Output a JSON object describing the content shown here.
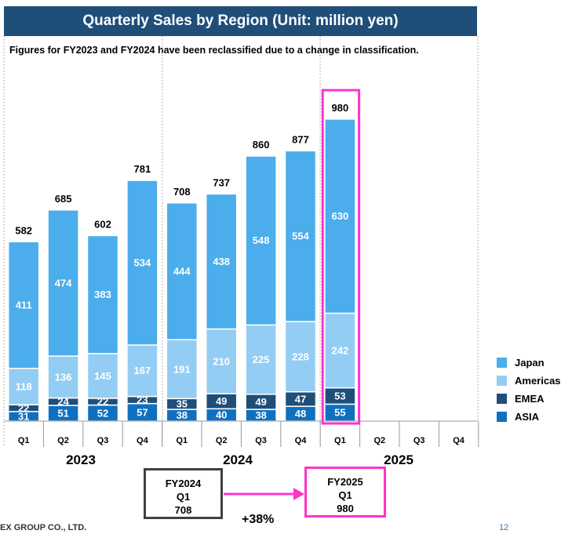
{
  "header": {
    "title": "Quarterly Sales by Region (Unit: million yen)"
  },
  "note": "Figures for FY2023 and FY2024 have been reclassified due to a change in classification.",
  "colors": {
    "Japan": "#4badec",
    "Americas": "#93cdf3",
    "EMEA": "#1f4e79",
    "ASIA": "#1070c0",
    "highlight": "#ff33cc"
  },
  "chart_data": {
    "type": "bar",
    "stacked": true,
    "categories": [
      "Q1",
      "Q2",
      "Q3",
      "Q4",
      "Q1",
      "Q2",
      "Q3",
      "Q4",
      "Q1",
      "Q2",
      "Q3",
      "Q4"
    ],
    "years": [
      "2023",
      "2024",
      "2025"
    ],
    "series": [
      {
        "name": "ASIA",
        "values": [
          31,
          51,
          52,
          57,
          38,
          40,
          38,
          48,
          55,
          null,
          null,
          null
        ]
      },
      {
        "name": "EMEA",
        "values": [
          22,
          24,
          22,
          23,
          35,
          49,
          49,
          47,
          53,
          null,
          null,
          null
        ]
      },
      {
        "name": "Americas",
        "values": [
          118,
          136,
          145,
          167,
          191,
          210,
          225,
          228,
          242,
          null,
          null,
          null
        ]
      },
      {
        "name": "Japan",
        "values": [
          411,
          474,
          383,
          534,
          444,
          438,
          548,
          554,
          630,
          null,
          null,
          null
        ]
      }
    ],
    "totals": [
      582,
      685,
      602,
      781,
      708,
      737,
      860,
      877,
      980,
      null,
      null,
      null
    ],
    "legend_order": [
      "Japan",
      "Americas",
      "EMEA",
      "ASIA"
    ],
    "legend_position": "right",
    "highlight_index": 8
  },
  "comparison": {
    "prev": {
      "line1": "FY2024",
      "line2": "Q1",
      "line3": "708"
    },
    "curr": {
      "line1": "FY2025",
      "line2": "Q1",
      "line3": "980"
    },
    "growth": "+38%"
  },
  "footer": {
    "company": "EX GROUP CO., LTD.",
    "page": "12"
  }
}
